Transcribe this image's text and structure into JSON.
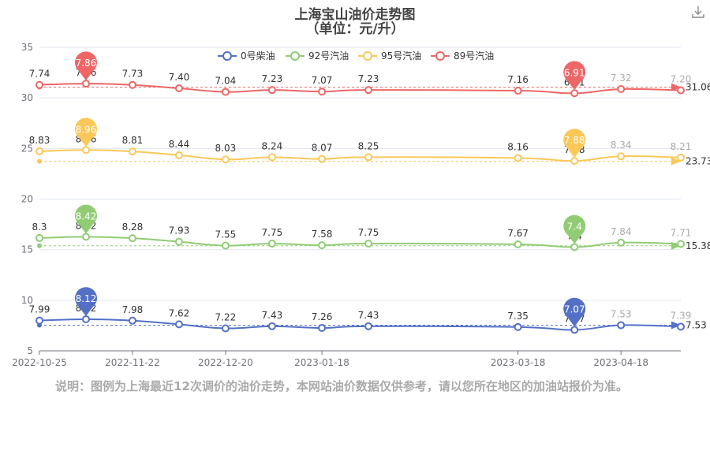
{
  "title": "上海宝山油价走势图",
  "subtitle": "（单位：元/升）",
  "note": "说明：图例为上海最近12次调价的油价走势，本网站油价数据仅供参考，请以您所在地区的加油站报价为准。",
  "chart_data": {
    "type": "line",
    "x_dates": [
      "2022-10-25",
      "2022-11-08",
      "2022-11-22",
      "2022-12-06",
      "2022-12-20",
      "2023-01-03",
      "2023-01-18",
      "2023-02-01",
      "2023-02-15",
      "2023-03-03",
      "2023-03-18",
      "2023-04-04",
      "2023-04-18",
      "2023-05-06"
    ],
    "x_tick_labels": [
      "2022-10-25",
      "2022-11-22",
      "2022-12-20",
      "2023-01-18",
      "2023-03-18",
      "2023-04-18"
    ],
    "y_axis": {
      "min": 5,
      "max": 35,
      "ticks": [
        5,
        10,
        15,
        20,
        25,
        30,
        35
      ]
    },
    "legend_position": "top",
    "series": [
      {
        "name": "0号柴油",
        "color": "#5470c6",
        "offset": 0,
        "dates": [
          "2022-10-25",
          "2022-11-08",
          "2022-11-22",
          "2022-12-06",
          "2022-12-20",
          "2023-01-03",
          "2023-01-18",
          "2023-02-01",
          "2023-02-15",
          "2023-03-03",
          "2023-03-18",
          "2023-04-04",
          "2023-04-18",
          "2023-05-06"
        ],
        "prices": [
          7.99,
          8.12,
          7.98,
          7.62,
          7.22,
          7.43,
          7.26,
          7.43,
          7.35,
          7.07,
          7.53,
          7.39
        ],
        "labels": [
          "7.99",
          "8.12",
          "7.98",
          "7.62",
          "7.22",
          "7.43",
          "7.26",
          "7.43",
          "7.35",
          "7.07",
          "7.53",
          "7.39"
        ],
        "point_dates": [
          "2022-10-25",
          "2022-11-08",
          "2022-11-22",
          "2022-12-06",
          "2022-12-20",
          "2023-01-03",
          "2023-01-18",
          "2023-02-01",
          "2023-03-18",
          "2023-04-04",
          "2023-04-18",
          "2023-05-06"
        ],
        "max_pin": "8.12",
        "min_pin": "7.07",
        "average": 7.53,
        "average_label": "7.53"
      },
      {
        "name": "92号汽油",
        "color": "#91cc75",
        "offset": 7.85,
        "prices": [
          8.3,
          8.42,
          8.28,
          7.93,
          7.55,
          7.75,
          7.58,
          7.75,
          7.67,
          7.4,
          7.84,
          7.71
        ],
        "labels": [
          "8.3",
          "8.42",
          "8.28",
          "7.93",
          "7.55",
          "7.75",
          "7.58",
          "7.75",
          "7.67",
          "7.4",
          "7.84",
          "7.71"
        ],
        "point_dates": [
          "2022-10-25",
          "2022-11-08",
          "2022-11-22",
          "2022-12-06",
          "2022-12-20",
          "2023-01-03",
          "2023-01-18",
          "2023-02-01",
          "2023-03-18",
          "2023-04-04",
          "2023-04-18",
          "2023-05-06"
        ],
        "max_pin": "8.42",
        "min_pin": "7.4",
        "average": 15.38,
        "average_label": "15.38"
      },
      {
        "name": "95号汽油",
        "color": "#fac858",
        "offset": 15.89,
        "prices": [
          8.83,
          8.96,
          8.81,
          8.44,
          8.03,
          8.24,
          8.07,
          8.25,
          8.16,
          7.88,
          8.34,
          8.21
        ],
        "labels": [
          "8.83",
          "8.96",
          "8.81",
          "8.44",
          "8.03",
          "8.24",
          "8.07",
          "8.25",
          "8.16",
          "7.88",
          "8.34",
          "8.21"
        ],
        "point_dates": [
          "2022-10-25",
          "2022-11-08",
          "2022-11-22",
          "2022-12-06",
          "2022-12-20",
          "2023-01-03",
          "2023-01-18",
          "2023-02-01",
          "2023-03-18",
          "2023-04-04",
          "2023-04-18",
          "2023-05-06"
        ],
        "max_pin": "8.96",
        "min_pin": "7.88",
        "average": 23.73,
        "average_label": "23.73"
      },
      {
        "name": "89号汽油",
        "color": "#ee6666",
        "offset": 23.55,
        "prices": [
          7.74,
          7.86,
          7.73,
          7.4,
          7.04,
          7.23,
          7.07,
          7.23,
          7.16,
          6.91,
          7.32,
          7.2
        ],
        "labels": [
          "7.74",
          "7.86",
          "7.73",
          "7.40",
          "7.04",
          "7.23",
          "7.07",
          "7.23",
          "7.16",
          "6.91",
          "7.32",
          "7.20"
        ],
        "point_dates": [
          "2022-10-25",
          "2022-11-08",
          "2022-11-22",
          "2022-12-06",
          "2022-12-20",
          "2023-01-03",
          "2023-01-18",
          "2023-02-01",
          "2023-03-18",
          "2023-04-04",
          "2023-04-18",
          "2023-05-06"
        ],
        "max_pin": "7.86",
        "min_pin": "6.91",
        "average": 31.06,
        "average_label": "31.06"
      }
    ]
  }
}
